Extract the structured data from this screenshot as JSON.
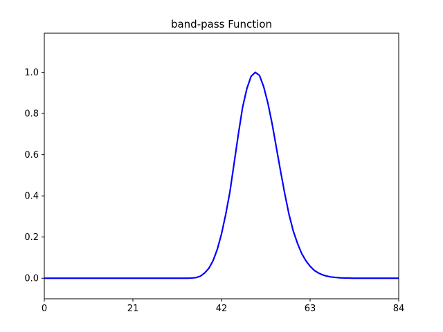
{
  "chart_data": {
    "type": "line",
    "title": "band-pass Function",
    "xlabel": "",
    "ylabel": "",
    "xlim": [
      0,
      84
    ],
    "ylim": [
      -0.1,
      1.19
    ],
    "xticks": [
      0,
      21,
      42,
      63,
      84
    ],
    "yticks": [
      0.0,
      0.2,
      0.4,
      0.6,
      0.8,
      1.0
    ],
    "xtick_labels": [
      "0",
      "21",
      "42",
      "63",
      "84"
    ],
    "ytick_labels": [
      "0.0",
      "0.2",
      "0.4",
      "0.6",
      "0.8",
      "1.0"
    ],
    "grid": false,
    "legend": "none",
    "series": [
      {
        "color": "#0000ff",
        "x": [
          0,
          5,
          10,
          15,
          20,
          25,
          30,
          34,
          35,
          36,
          37,
          38,
          39,
          40,
          41,
          42,
          43,
          44,
          45,
          46,
          47,
          48,
          49,
          50,
          51,
          52,
          53,
          54,
          55,
          56,
          57,
          58,
          59,
          60,
          61,
          62,
          63,
          64,
          65,
          66,
          67,
          68,
          69,
          70,
          71,
          72,
          73,
          74,
          75,
          80,
          84
        ],
        "y": [
          0.0,
          0.0,
          0.0,
          0.0,
          0.0,
          0.0,
          0.0,
          0.0,
          0.001,
          0.003,
          0.01,
          0.025,
          0.048,
          0.085,
          0.14,
          0.215,
          0.31,
          0.42,
          0.56,
          0.7,
          0.83,
          0.92,
          0.98,
          1.0,
          0.985,
          0.93,
          0.85,
          0.75,
          0.635,
          0.52,
          0.41,
          0.31,
          0.23,
          0.17,
          0.12,
          0.085,
          0.058,
          0.038,
          0.025,
          0.016,
          0.01,
          0.006,
          0.004,
          0.002,
          0.001,
          0.001,
          0.0,
          0.0,
          0.0,
          0.0,
          0.0
        ]
      }
    ]
  }
}
